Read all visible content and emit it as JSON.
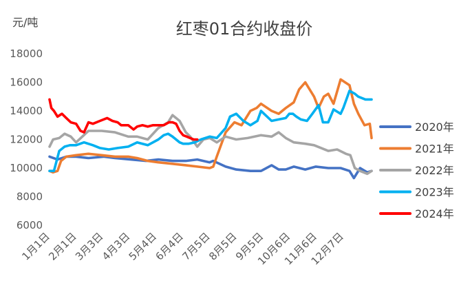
{
  "chart_data": {
    "type": "line",
    "title": "红枣01合约收盘价",
    "ylabel": "元/吨",
    "xlabel": "",
    "ylim": [
      6000,
      18000
    ],
    "yticks": [
      6000,
      8000,
      10000,
      12000,
      14000,
      16000,
      18000
    ],
    "x_categories": [
      "1月1日",
      "2月1日",
      "3月3日",
      "4月3日",
      "5月4日",
      "6月4日",
      "7月5日",
      "8月5日",
      "9月5日",
      "10月6日",
      "11月6日",
      "12月7日"
    ],
    "x_range": [
      1,
      365
    ],
    "grid": false,
    "legend_position": "right",
    "series": [
      {
        "name": "2020年",
        "color": "#4472C4",
        "x": [
          1,
          10,
          20,
          31,
          45,
          62,
          75,
          93,
          110,
          124,
          140,
          155,
          168,
          182,
          186,
          200,
          212,
          228,
          240,
          252,
          260,
          268,
          277,
          290,
          302,
          316,
          330,
          340,
          345,
          352,
          360,
          365
        ],
        "y": [
          10800,
          10600,
          10800,
          10800,
          10700,
          10800,
          10700,
          10600,
          10500,
          10600,
          10500,
          10500,
          10600,
          10400,
          10500,
          10100,
          9900,
          9800,
          9800,
          10200,
          9900,
          9900,
          10100,
          9900,
          10100,
          10000,
          10000,
          9800,
          9300,
          10000,
          9700,
          9800
        ]
      },
      {
        "name": "2021年",
        "color": "#ED7D31",
        "x": [
          1,
          5,
          10,
          14,
          20,
          31,
          45,
          60,
          75,
          90,
          100,
          112,
          124,
          140,
          155,
          168,
          182,
          186,
          190,
          200,
          210,
          218,
          228,
          235,
          240,
          252,
          260,
          268,
          277,
          283,
          290,
          300,
          305,
          311,
          316,
          322,
          330,
          340,
          345,
          350,
          357,
          363,
          365
        ],
        "y": [
          9800,
          9700,
          9800,
          10500,
          10800,
          10900,
          11000,
          10900,
          10800,
          10800,
          10700,
          10500,
          10400,
          10300,
          10200,
          10100,
          10000,
          10100,
          10800,
          12500,
          13200,
          13000,
          14000,
          14200,
          14500,
          14000,
          13800,
          14200,
          14600,
          15500,
          16000,
          15000,
          14200,
          15000,
          15200,
          14500,
          16200,
          15800,
          14500,
          13800,
          13000,
          13100,
          12100
        ]
      },
      {
        "name": "2022年",
        "color": "#A5A5A5",
        "x": [
          1,
          5,
          12,
          18,
          25,
          31,
          45,
          60,
          75,
          90,
          100,
          112,
          124,
          135,
          140,
          148,
          155,
          160,
          168,
          175,
          182,
          190,
          200,
          212,
          225,
          240,
          252,
          260,
          268,
          277,
          290,
          300,
          316,
          326,
          336,
          341,
          346,
          352,
          360,
          365
        ],
        "y": [
          11500,
          12000,
          12100,
          12400,
          12200,
          11800,
          12600,
          12600,
          12500,
          12200,
          12200,
          12000,
          12800,
          13200,
          13700,
          13300,
          12500,
          12200,
          11500,
          12000,
          12100,
          11800,
          12200,
          12000,
          12100,
          12300,
          12200,
          12500,
          12100,
          11800,
          11700,
          11600,
          11200,
          11300,
          11000,
          10900,
          10000,
          9800,
          9600,
          9800
        ]
      },
      {
        "name": "2023年",
        "color": "#00B0F0",
        "x": [
          1,
          6,
          12,
          18,
          24,
          31,
          40,
          50,
          58,
          68,
          78,
          90,
          100,
          112,
          124,
          130,
          135,
          140,
          148,
          152,
          158,
          165,
          172,
          182,
          190,
          200,
          205,
          212,
          220,
          228,
          236,
          240,
          252,
          260,
          268,
          272,
          276,
          280,
          285,
          292,
          298,
          305,
          310,
          316,
          322,
          330,
          333,
          340,
          346,
          350,
          358,
          365
        ],
        "y": [
          9800,
          9800,
          11200,
          11500,
          11600,
          11600,
          11800,
          11600,
          11400,
          11300,
          11400,
          11500,
          11800,
          11600,
          12000,
          12300,
          12400,
          12200,
          11800,
          11700,
          11700,
          11800,
          12000,
          12200,
          12100,
          12800,
          13600,
          13800,
          13300,
          13000,
          13300,
          14000,
          13300,
          13400,
          13500,
          13800,
          13800,
          13600,
          13400,
          13300,
          13800,
          14400,
          13200,
          13200,
          14100,
          13800,
          14200,
          15400,
          15200,
          15000,
          14800,
          14800
        ]
      },
      {
        "name": "2024年",
        "color": "#FF0000",
        "x": [
          1,
          3,
          6,
          10,
          15,
          20,
          25,
          31,
          36,
          40,
          45,
          50,
          58,
          66,
          72,
          78,
          82,
          86,
          90,
          96,
          100,
          106,
          112,
          118,
          124,
          130,
          136,
          140,
          144,
          148,
          152,
          156,
          160,
          164,
          168
        ],
        "y": [
          14800,
          14200,
          14000,
          13600,
          13800,
          13500,
          13200,
          13100,
          12600,
          12500,
          13200,
          13100,
          13300,
          13500,
          13300,
          13200,
          13000,
          13000,
          13000,
          12700,
          12900,
          13000,
          12900,
          13000,
          13000,
          13000,
          13200,
          13200,
          13100,
          12600,
          12300,
          12200,
          12100,
          12000,
          12000
        ]
      }
    ]
  }
}
